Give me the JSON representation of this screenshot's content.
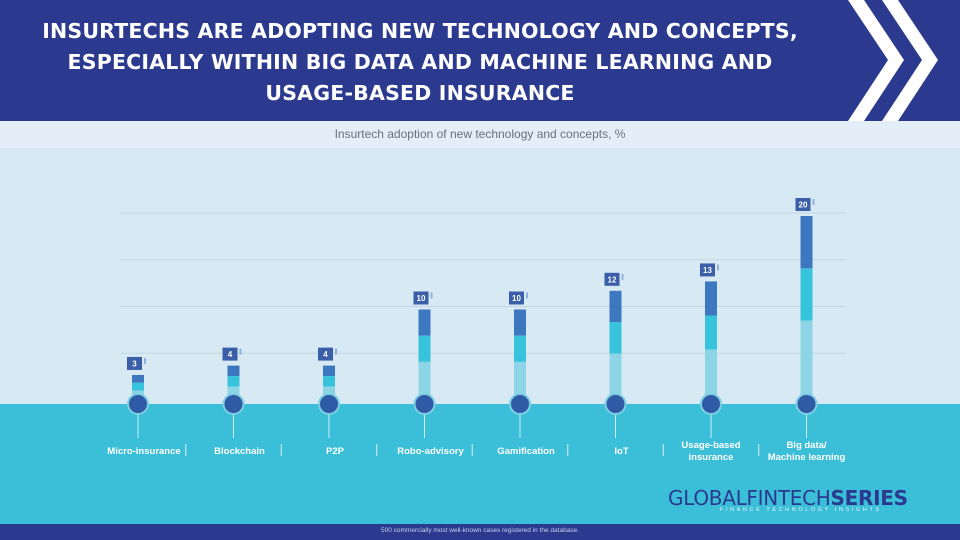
{
  "header": {
    "title_line1": "INSURTECHS ARE ADOPTING NEW TECHNOLOGY AND CONCEPTS,",
    "title_line2": "ESPECIALLY WITHIN BIG DATA AND MACHINE LEARNING AND",
    "title_line3": "USAGE-BASED INSURANCE"
  },
  "footer": {
    "note": "500 commercially most well-known cases registered in the database.",
    "brand_light": "GLOBALFINTECH",
    "brand_bold": "SERIES",
    "tagline": "FINANCE TECHNOLOGY INSIGHTS"
  },
  "colors": {
    "header": "#2b3a8f",
    "seg_top": "#3d77bf",
    "seg_mid": "#37c3db",
    "seg_low": "#8dd4e6",
    "ground": "#3bbfd8",
    "label_box": "#3a5fa8",
    "node": "#2e5aa6"
  },
  "chart_data": {
    "type": "bar",
    "title": "Insurtech adoption of new technology and concepts, %",
    "categories": [
      "Micro-insurance",
      "Blockchain",
      "P2P",
      "Robo-advisory",
      "Gamification",
      "IoT",
      "Usage-based insurance",
      "Big data/ Machine learning"
    ],
    "category_lines": [
      [
        "Micro-insurance"
      ],
      [
        "Blockchain"
      ],
      [
        "P2P"
      ],
      [
        "Robo-advisory"
      ],
      [
        "Gamification"
      ],
      [
        "IoT"
      ],
      [
        "Usage-based",
        "insurance"
      ],
      [
        "Big data/",
        "Machine learning"
      ]
    ],
    "values": [
      3,
      4,
      4,
      10,
      10,
      12,
      13,
      20
    ],
    "value_labels": [
      "3",
      "4",
      "4",
      "10",
      "10",
      "12",
      "13",
      "20"
    ],
    "ylim": [
      0,
      20
    ],
    "grid": true
  }
}
